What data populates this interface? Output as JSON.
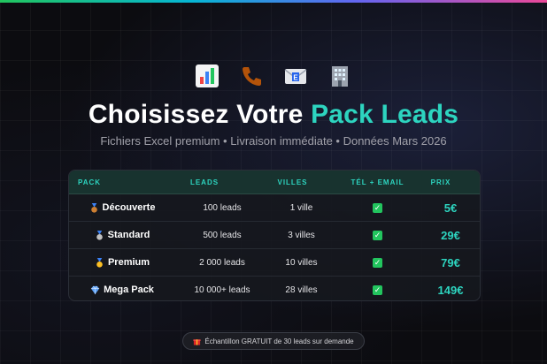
{
  "header": {
    "icons": [
      "bar-chart-icon",
      "phone-icon",
      "email-icon",
      "office-building-icon"
    ],
    "title_main": "Choisissez Votre ",
    "title_accent": "Pack Leads",
    "subtitle": "Fichiers Excel premium • Livraison immédiate • Données Mars 2026"
  },
  "colors": {
    "accent": "#2dd4bf",
    "check": "#22c55e",
    "gradient": [
      "#22c55e",
      "#06b6d4",
      "#6366f1",
      "#ec4899"
    ]
  },
  "table": {
    "columns": [
      "PACK",
      "LEADS",
      "VILLES",
      "TÉL + EMAIL",
      "PRIX"
    ],
    "rows": [
      {
        "icon": "bronze-medal-icon",
        "pack": "Découverte",
        "leads": "100 leads",
        "villes": "1 ville",
        "tel_email": "check-icon",
        "prix": "5€"
      },
      {
        "icon": "silver-medal-icon",
        "pack": "Standard",
        "leads": "500 leads",
        "villes": "3 villes",
        "tel_email": "check-icon",
        "prix": "29€"
      },
      {
        "icon": "gold-medal-icon",
        "pack": "Premium",
        "leads": "2 000 leads",
        "villes": "10 villes",
        "tel_email": "check-icon",
        "prix": "79€"
      },
      {
        "icon": "diamond-icon",
        "pack": "Mega Pack",
        "leads": "10 000+ leads",
        "villes": "28 villes",
        "tel_email": "check-icon",
        "prix": "149€"
      }
    ]
  },
  "footer": {
    "icon": "gift-icon",
    "text": "Échantillon GRATUIT de 30 leads sur demande"
  }
}
